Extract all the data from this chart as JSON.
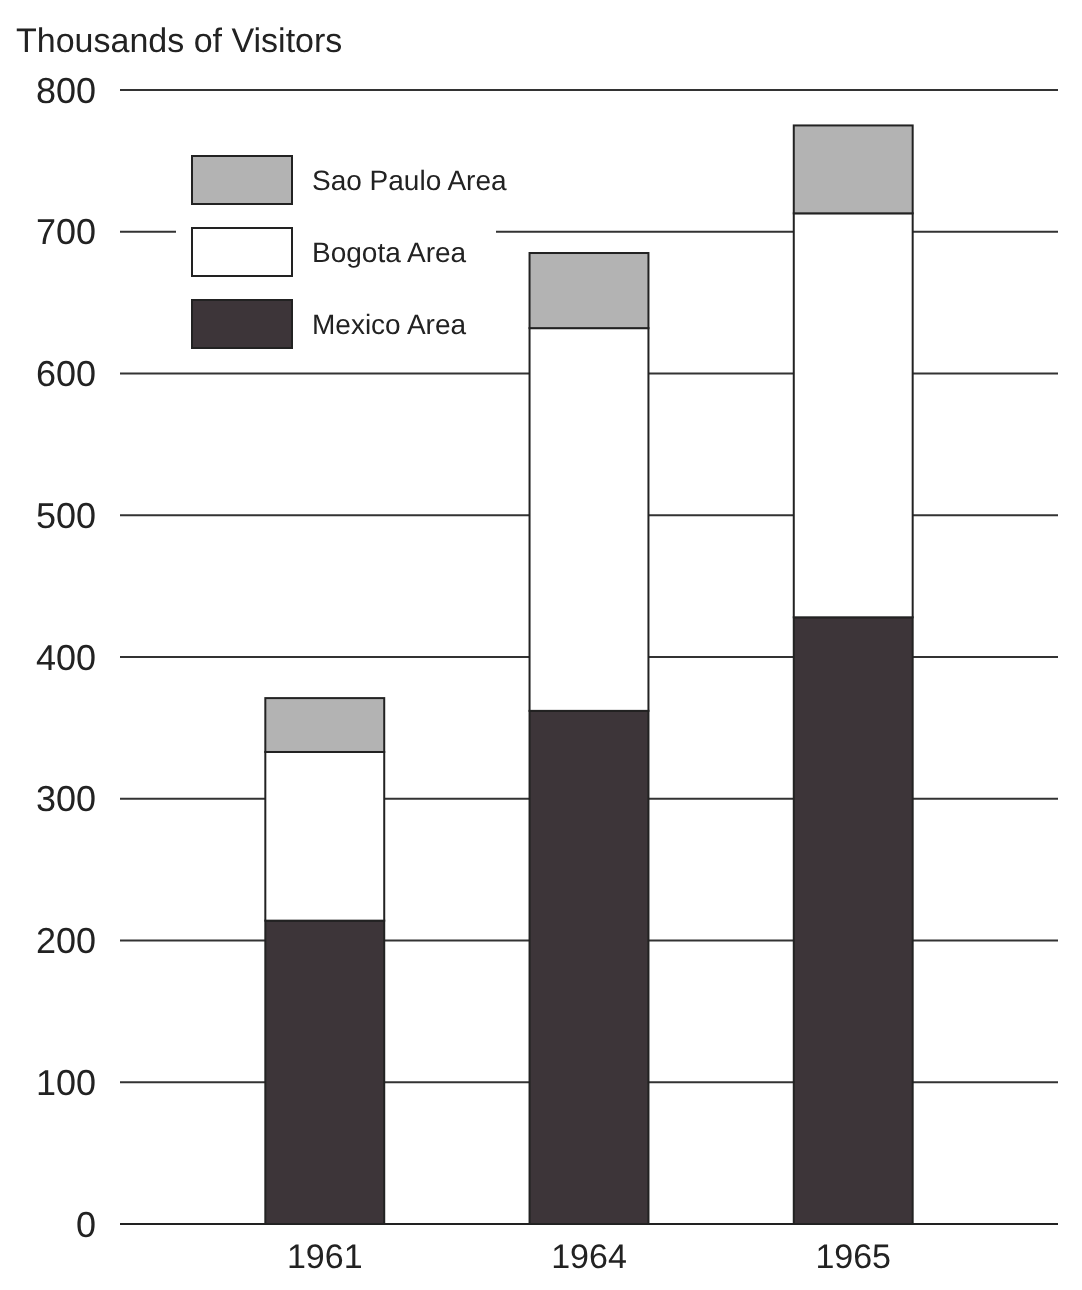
{
  "chart_data": {
    "type": "bar",
    "ylabel": "Thousands of Visitors",
    "categories": [
      "1961",
      "1964",
      "1965"
    ],
    "stacked": true,
    "series": [
      {
        "name": "Mexico Area",
        "color": "#3d3539",
        "values": [
          214,
          362,
          428
        ]
      },
      {
        "name": "Bogota Area",
        "color": "#ffffff",
        "values": [
          119,
          270,
          285
        ]
      },
      {
        "name": "Sao Paulo Area",
        "color": "#b3b3b3",
        "values": [
          38,
          53,
          62
        ]
      }
    ],
    "ylim": [
      0,
      800
    ],
    "yticks": [
      0,
      100,
      200,
      300,
      400,
      500,
      600,
      700,
      800
    ],
    "grid": "y",
    "legend": "top left"
  }
}
